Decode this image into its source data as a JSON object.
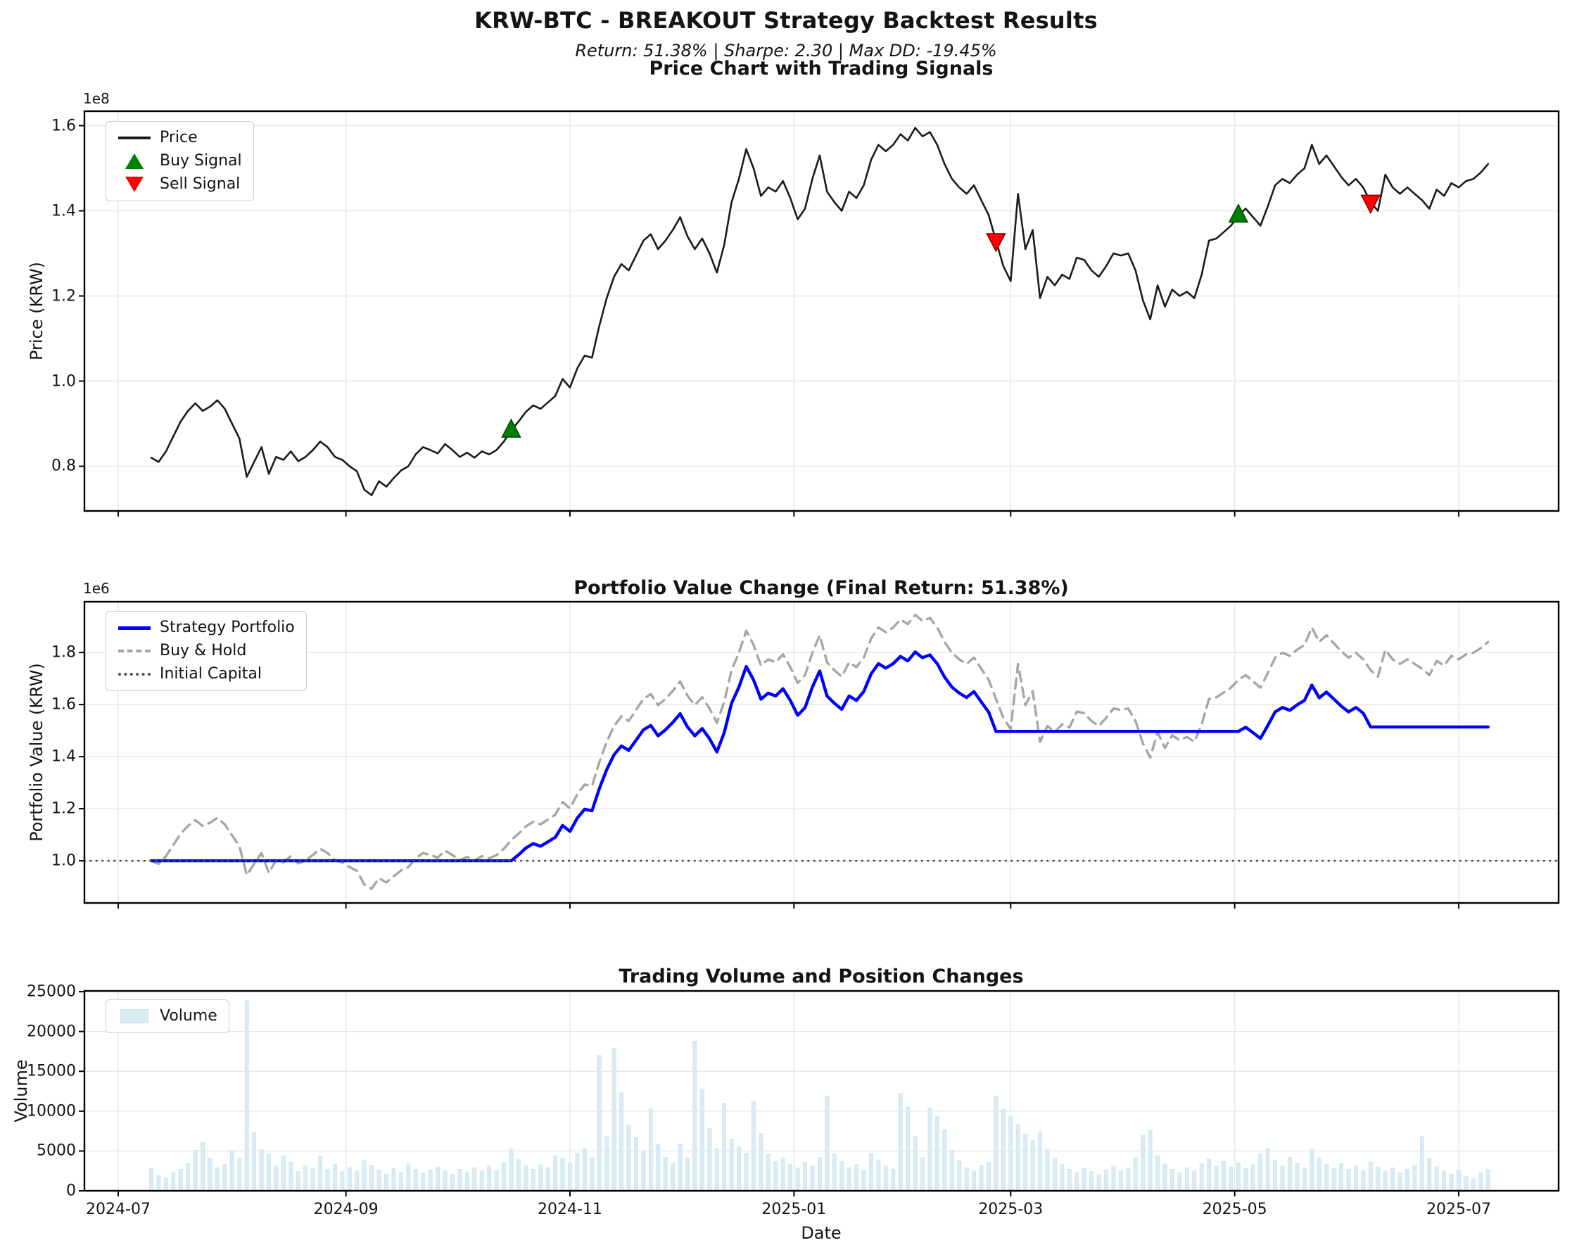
{
  "figure": {
    "suptitle": "KRW-BTC - BREAKOUT Strategy Backtest Results",
    "subtitle": "Return: 51.38% | Sharpe: 2.30 | Max DD: -19.45%",
    "background": "#ffffff",
    "stats": {
      "return_pct": 51.38,
      "sharpe": 2.3,
      "max_drawdown_pct": -19.45,
      "pair": "KRW-BTC",
      "strategy": "BREAKOUT"
    }
  },
  "x_axis": {
    "xlabel": "Date",
    "start_date": "2024-07-10",
    "step_days": 2,
    "num_points": 183,
    "xlim_index": [
      -9.1,
      191.6
    ],
    "ticks": [
      {
        "index": -4.5,
        "label": "2024-07"
      },
      {
        "index": 26.5,
        "label": "2024-09"
      },
      {
        "index": 57.0,
        "label": "2024-11"
      },
      {
        "index": 87.5,
        "label": "2025-01"
      },
      {
        "index": 117.0,
        "label": "2025-03"
      },
      {
        "index": 147.5,
        "label": "2025-05"
      },
      {
        "index": 178.0,
        "label": "2025-07"
      }
    ]
  },
  "chart_data": [
    {
      "id": "price",
      "type": "line",
      "title": "Price Chart with Trading Signals",
      "ylabel": "Price (KRW)",
      "offset_label": "1e8",
      "unit_multiplier": 100000000.0,
      "ylim": [
        0.695,
        1.634
      ],
      "yticks": [
        {
          "v": 0.8,
          "label": "0.8"
        },
        {
          "v": 1.0,
          "label": "1.0"
        },
        {
          "v": 1.2,
          "label": "1.2"
        },
        {
          "v": 1.4,
          "label": "1.4"
        },
        {
          "v": 1.6,
          "label": "1.6"
        }
      ],
      "grid": true,
      "legend": [
        {
          "label": "Price",
          "swatch": "line",
          "color": "#1b1b1b"
        },
        {
          "label": "Buy Signal",
          "swatch": "triangle-up",
          "color": "#008000"
        },
        {
          "label": "Sell Signal",
          "swatch": "triangle-down",
          "color": "#ff0000"
        }
      ],
      "series": [
        {
          "name": "Price",
          "style": "solid",
          "color": "#1b1b1b",
          "width": 2.6,
          "values": [
            0.82,
            0.81,
            0.835,
            0.87,
            0.905,
            0.93,
            0.948,
            0.93,
            0.94,
            0.955,
            0.935,
            0.9,
            0.865,
            0.775,
            0.81,
            0.845,
            0.782,
            0.822,
            0.815,
            0.835,
            0.812,
            0.822,
            0.838,
            0.858,
            0.845,
            0.822,
            0.815,
            0.8,
            0.788,
            0.745,
            0.732,
            0.765,
            0.752,
            0.772,
            0.79,
            0.8,
            0.828,
            0.845,
            0.838,
            0.83,
            0.852,
            0.838,
            0.822,
            0.832,
            0.82,
            0.835,
            0.828,
            0.838,
            0.858,
            0.885,
            0.905,
            0.928,
            0.943,
            0.935,
            0.95,
            0.965,
            1.005,
            0.985,
            1.03,
            1.06,
            1.055,
            1.13,
            1.195,
            1.245,
            1.275,
            1.26,
            1.295,
            1.33,
            1.345,
            1.31,
            1.33,
            1.355,
            1.385,
            1.34,
            1.31,
            1.335,
            1.3,
            1.255,
            1.32,
            1.42,
            1.475,
            1.545,
            1.5,
            1.435,
            1.455,
            1.445,
            1.47,
            1.43,
            1.38,
            1.405,
            1.475,
            1.53,
            1.445,
            1.42,
            1.4,
            1.445,
            1.43,
            1.46,
            1.52,
            1.555,
            1.54,
            1.555,
            1.58,
            1.565,
            1.595,
            1.575,
            1.585,
            1.555,
            1.51,
            1.475,
            1.455,
            1.44,
            1.46,
            1.425,
            1.39,
            1.33,
            1.27,
            1.235,
            1.44,
            1.31,
            1.355,
            1.195,
            1.245,
            1.225,
            1.25,
            1.24,
            1.29,
            1.285,
            1.26,
            1.245,
            1.27,
            1.3,
            1.295,
            1.3,
            1.26,
            1.19,
            1.145,
            1.225,
            1.175,
            1.215,
            1.2,
            1.21,
            1.195,
            1.25,
            1.33,
            1.335,
            1.35,
            1.365,
            1.39,
            1.405,
            1.385,
            1.365,
            1.41,
            1.46,
            1.475,
            1.465,
            1.485,
            1.5,
            1.555,
            1.51,
            1.53,
            1.505,
            1.48,
            1.46,
            1.475,
            1.455,
            1.42,
            1.4,
            1.485,
            1.455,
            1.44,
            1.455,
            1.44,
            1.425,
            1.405,
            1.45,
            1.435,
            1.465,
            1.455,
            1.47,
            1.475,
            1.49,
            1.51
          ]
        }
      ],
      "markers": [
        {
          "type": "buy",
          "shape": "triangle-up",
          "color": "#008000",
          "edge": "#004d00",
          "points": [
            {
              "i": 49,
              "v": 0.885
            },
            {
              "i": 148,
              "v": 1.39
            }
          ]
        },
        {
          "type": "sell",
          "shape": "triangle-down",
          "color": "#ff0000",
          "edge": "#8b0000",
          "points": [
            {
              "i": 115,
              "v": 1.33
            },
            {
              "i": 166,
              "v": 1.42
            }
          ]
        }
      ]
    },
    {
      "id": "portfolio",
      "type": "line",
      "title": "Portfolio Value Change (Final Return: 51.38%)",
      "ylabel": "Portfolio Value (KRW)",
      "offset_label": "1e6",
      "unit_multiplier": 1000000.0,
      "ylim": [
        0.838,
        1.995
      ],
      "yticks": [
        {
          "v": 1.0,
          "label": "1.0"
        },
        {
          "v": 1.2,
          "label": "1.2"
        },
        {
          "v": 1.4,
          "label": "1.4"
        },
        {
          "v": 1.6,
          "label": "1.6"
        },
        {
          "v": 1.8,
          "label": "1.8"
        }
      ],
      "grid": true,
      "legend": [
        {
          "label": "Strategy Portfolio",
          "swatch": "line",
          "color": "#0000ff"
        },
        {
          "label": "Buy & Hold",
          "swatch": "dashed-line",
          "color": "#a6a6a6"
        },
        {
          "label": "Initial Capital",
          "swatch": "dotted-line",
          "color": "#4d4d4d"
        }
      ],
      "series": [
        {
          "name": "Buy & Hold",
          "style": "dashed",
          "color": "#a6a6a6",
          "width": 3.4,
          "values": [
            1.0,
            0.988,
            1.018,
            1.061,
            1.104,
            1.134,
            1.156,
            1.134,
            1.146,
            1.165,
            1.14,
            1.098,
            1.055,
            0.945,
            0.988,
            1.03,
            0.954,
            1.002,
            0.994,
            1.018,
            0.99,
            1.002,
            1.022,
            1.046,
            1.03,
            1.002,
            0.994,
            0.976,
            0.961,
            0.909,
            0.893,
            0.933,
            0.917,
            0.941,
            0.963,
            0.976,
            1.01,
            1.03,
            1.022,
            1.012,
            1.039,
            1.022,
            1.002,
            1.015,
            1.0,
            1.018,
            1.01,
            1.022,
            1.046,
            1.079,
            1.104,
            1.132,
            1.15,
            1.14,
            1.159,
            1.177,
            1.226,
            1.201,
            1.256,
            1.293,
            1.287,
            1.378,
            1.457,
            1.518,
            1.555,
            1.537,
            1.579,
            1.622,
            1.64,
            1.598,
            1.622,
            1.652,
            1.689,
            1.634,
            1.598,
            1.628,
            1.585,
            1.53,
            1.61,
            1.732,
            1.799,
            1.884,
            1.829,
            1.75,
            1.774,
            1.762,
            1.793,
            1.744,
            1.683,
            1.713,
            1.799,
            1.866,
            1.762,
            1.732,
            1.707,
            1.762,
            1.744,
            1.78,
            1.854,
            1.896,
            1.878,
            1.896,
            1.927,
            1.909,
            1.945,
            1.921,
            1.933,
            1.896,
            1.841,
            1.799,
            1.774,
            1.756,
            1.78,
            1.738,
            1.695,
            1.622,
            1.549,
            1.506,
            1.756,
            1.598,
            1.652,
            1.457,
            1.518,
            1.494,
            1.524,
            1.512,
            1.573,
            1.567,
            1.537,
            1.518,
            1.549,
            1.585,
            1.579,
            1.585,
            1.537,
            1.451,
            1.396,
            1.494,
            1.433,
            1.482,
            1.463,
            1.476,
            1.457,
            1.524,
            1.622,
            1.628,
            1.646,
            1.665,
            1.695,
            1.713,
            1.689,
            1.665,
            1.72,
            1.78,
            1.799,
            1.787,
            1.811,
            1.829,
            1.896,
            1.841,
            1.866,
            1.835,
            1.805,
            1.78,
            1.799,
            1.774,
            1.732,
            1.707,
            1.811,
            1.774,
            1.756,
            1.774,
            1.756,
            1.738,
            1.713,
            1.768,
            1.75,
            1.787,
            1.774,
            1.793,
            1.799,
            1.817,
            1.841
          ]
        },
        {
          "name": "Strategy Portfolio",
          "style": "solid",
          "color": "#0000ff",
          "width": 4.4,
          "values": [
            1.0,
            1.0,
            1.0,
            1.0,
            1.0,
            1.0,
            1.0,
            1.0,
            1.0,
            1.0,
            1.0,
            1.0,
            1.0,
            1.0,
            1.0,
            1.0,
            1.0,
            1.0,
            1.0,
            1.0,
            1.0,
            1.0,
            1.0,
            1.0,
            1.0,
            1.0,
            1.0,
            1.0,
            1.0,
            1.0,
            1.0,
            1.0,
            1.0,
            1.0,
            1.0,
            1.0,
            1.0,
            1.0,
            1.0,
            1.0,
            1.0,
            1.0,
            1.0,
            1.0,
            1.0,
            1.0,
            1.0,
            1.0,
            1.0,
            1.0,
            1.023,
            1.049,
            1.066,
            1.056,
            1.073,
            1.09,
            1.136,
            1.113,
            1.164,
            1.198,
            1.192,
            1.277,
            1.35,
            1.407,
            1.441,
            1.424,
            1.463,
            1.503,
            1.52,
            1.48,
            1.503,
            1.531,
            1.565,
            1.514,
            1.48,
            1.508,
            1.469,
            1.418,
            1.492,
            1.605,
            1.667,
            1.746,
            1.695,
            1.621,
            1.644,
            1.633,
            1.661,
            1.616,
            1.559,
            1.588,
            1.667,
            1.729,
            1.633,
            1.605,
            1.582,
            1.633,
            1.616,
            1.65,
            1.718,
            1.757,
            1.74,
            1.757,
            1.785,
            1.768,
            1.802,
            1.78,
            1.791,
            1.757,
            1.706,
            1.667,
            1.644,
            1.627,
            1.65,
            1.61,
            1.571,
            1.497,
            1.497,
            1.497,
            1.497,
            1.497,
            1.497,
            1.497,
            1.497,
            1.497,
            1.497,
            1.497,
            1.497,
            1.497,
            1.497,
            1.497,
            1.497,
            1.497,
            1.497,
            1.497,
            1.497,
            1.497,
            1.497,
            1.497,
            1.497,
            1.497,
            1.497,
            1.497,
            1.497,
            1.497,
            1.497,
            1.497,
            1.497,
            1.497,
            1.497,
            1.513,
            1.492,
            1.47,
            1.519,
            1.572,
            1.589,
            1.578,
            1.599,
            1.616,
            1.675,
            1.626,
            1.648,
            1.621,
            1.594,
            1.572,
            1.589,
            1.567,
            1.514,
            1.514,
            1.514,
            1.514,
            1.514,
            1.514,
            1.514,
            1.514,
            1.514,
            1.514,
            1.514,
            1.514,
            1.514,
            1.514,
            1.514,
            1.514,
            1.514
          ]
        },
        {
          "name": "Initial Capital",
          "style": "dotted",
          "color": "#4d4d4d",
          "width": 2.8,
          "constant": 1.0
        }
      ]
    },
    {
      "id": "volume",
      "type": "bar",
      "title": "Trading Volume and Position Changes",
      "ylabel": "Volume",
      "offset_label": "",
      "ylim": [
        0,
        25095
      ],
      "yticks": [
        {
          "v": 0,
          "label": "0"
        },
        {
          "v": 5000,
          "label": "5000"
        },
        {
          "v": 10000,
          "label": "10000"
        },
        {
          "v": 15000,
          "label": "15000"
        },
        {
          "v": 20000,
          "label": "20000"
        },
        {
          "v": 25000,
          "label": "25000"
        }
      ],
      "grid": true,
      "legend": [
        {
          "label": "Volume",
          "swatch": "rect",
          "color": "#d9ecf5"
        }
      ],
      "bars": {
        "name": "Volume",
        "color": "#d9ecf5",
        "edge": "#c3dfec",
        "values": [
          2800,
          1900,
          1600,
          2300,
          2700,
          3400,
          5100,
          6100,
          4100,
          2900,
          3300,
          4900,
          4100,
          23900,
          7300,
          5200,
          4600,
          3100,
          4400,
          3600,
          2400,
          3100,
          2800,
          4300,
          2700,
          3300,
          2400,
          2900,
          2500,
          3800,
          3200,
          2600,
          2100,
          2800,
          2300,
          3400,
          2700,
          2200,
          2600,
          3000,
          2500,
          2100,
          2700,
          2300,
          2900,
          2500,
          3100,
          2600,
          3500,
          5200,
          3900,
          3100,
          2700,
          3300,
          2900,
          4400,
          4100,
          3400,
          4700,
          5300,
          4200,
          17000,
          6800,
          17900,
          12300,
          8300,
          6700,
          5000,
          10300,
          5800,
          4200,
          3400,
          5900,
          4100,
          18800,
          12800,
          7800,
          5300,
          11000,
          6500,
          5500,
          4700,
          11200,
          7200,
          4600,
          3700,
          4100,
          3300,
          2900,
          3600,
          3100,
          4200,
          11900,
          4600,
          3700,
          2900,
          3300,
          2600,
          4700,
          3900,
          3100,
          2700,
          12200,
          10500,
          6800,
          4200,
          10400,
          9300,
          7700,
          5100,
          3800,
          2900,
          2500,
          3200,
          3600,
          11900,
          10300,
          9400,
          8300,
          7100,
          6300,
          7400,
          5200,
          4100,
          3300,
          2700,
          2300,
          2800,
          2400,
          2000,
          2600,
          3100,
          2500,
          2900,
          4200,
          7000,
          7600,
          4400,
          3300,
          2700,
          2300,
          2900,
          2500,
          3400,
          4000,
          3100,
          3700,
          3000,
          3500,
          2800,
          3300,
          4600,
          5300,
          3800,
          3100,
          4200,
          3500,
          2900,
          5200,
          4100,
          3300,
          2800,
          3400,
          2700,
          3100,
          2500,
          3600,
          3000,
          2400,
          2900,
          2300,
          2700,
          3200,
          6800,
          4100,
          3000,
          2500,
          2100,
          2600,
          1800,
          1500,
          2300,
          2700
        ]
      }
    }
  ],
  "style": {
    "grid_color": "#e7e7e7",
    "spine_color": "#000000",
    "tick_color": "#000000",
    "text_color": "#141414"
  }
}
